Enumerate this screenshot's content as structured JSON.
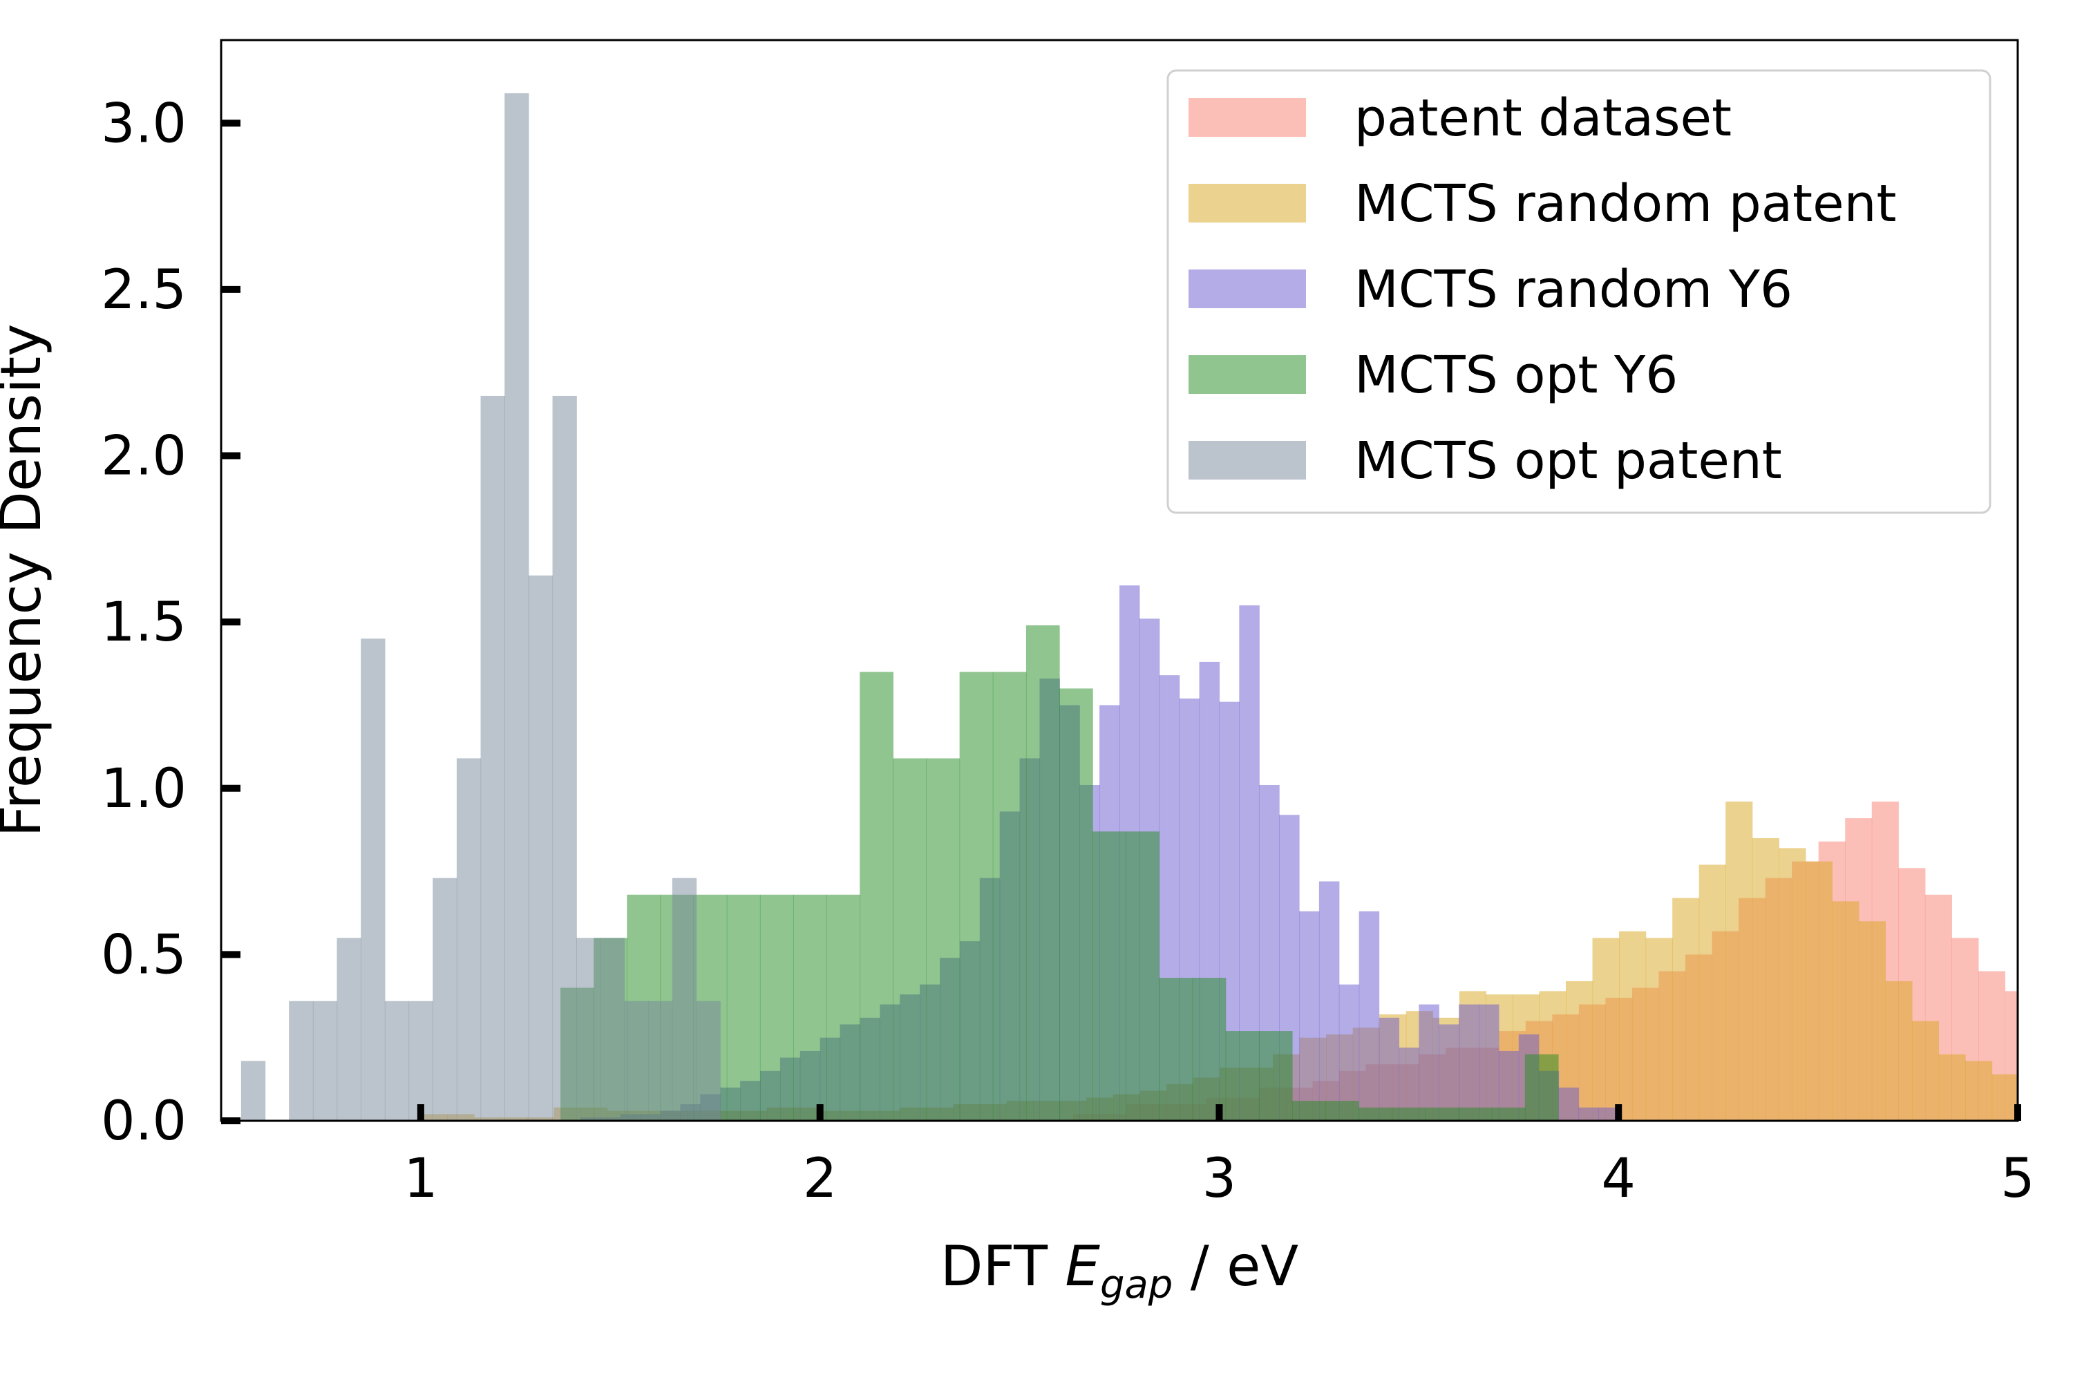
{
  "chart_data": {
    "type": "histogram",
    "xlabel": "DFT E_gap / eV",
    "xlabel_parts": {
      "prefix": "DFT ",
      "symbol": "E",
      "subscript": "gap",
      "suffix": " / eV"
    },
    "ylabel": "Frequency Density",
    "xlim": [
      0.5,
      5.0
    ],
    "ylim": [
      0,
      3.25
    ],
    "xticks": [
      1,
      2,
      3,
      4,
      5
    ],
    "yticks": [
      0.0,
      0.5,
      1.0,
      1.5,
      2.0,
      2.5,
      3.0
    ],
    "ytick_labels": [
      "0.0",
      "0.5",
      "1.0",
      "1.5",
      "2.0",
      "2.5",
      "3.0"
    ],
    "grid": false,
    "legend_position": "top-right",
    "series": [
      {
        "name": "patent dataset",
        "color": "#fa8072",
        "opacity": 0.5,
        "bin_start": 2.5,
        "bin_width": 0.0667,
        "values": [
          0.0,
          0.0,
          0.02,
          0.02,
          0.05,
          0.05,
          0.05,
          0.07,
          0.07,
          0.1,
          0.1,
          0.12,
          0.15,
          0.17,
          0.17,
          0.2,
          0.22,
          0.22,
          0.27,
          0.3,
          0.32,
          0.35,
          0.37,
          0.4,
          0.45,
          0.5,
          0.57,
          0.67,
          0.73,
          0.78,
          0.84,
          0.91,
          0.96,
          0.76,
          0.68,
          0.55,
          0.45,
          0.39,
          0.35,
          0.33,
          0.3,
          0.37,
          0.34,
          0.3,
          0.25
        ]
      },
      {
        "name": "MCTS random patent",
        "color": "#daa520",
        "opacity": 0.5,
        "bin_start": 1.0,
        "bin_width": 0.0667,
        "values": [
          0.02,
          0.02,
          0.01,
          0.01,
          0.01,
          0.04,
          0.04,
          0.03,
          0.03,
          0.03,
          0.03,
          0.03,
          0.03,
          0.04,
          0.04,
          0.03,
          0.03,
          0.03,
          0.04,
          0.04,
          0.05,
          0.05,
          0.06,
          0.06,
          0.06,
          0.07,
          0.08,
          0.09,
          0.11,
          0.13,
          0.16,
          0.16,
          0.2,
          0.25,
          0.26,
          0.28,
          0.32,
          0.33,
          0.31,
          0.39,
          0.38,
          0.38,
          0.39,
          0.42,
          0.55,
          0.57,
          0.55,
          0.67,
          0.77,
          0.96,
          0.85,
          0.82,
          0.78,
          0.66,
          0.6,
          0.42,
          0.3,
          0.2,
          0.18,
          0.14,
          0.11,
          0.09,
          0.09,
          0.07,
          0.05,
          0.05,
          0.05,
          0.05,
          0.03
        ]
      },
      {
        "name": "MCTS random Y6",
        "color": "#6a5acd",
        "opacity": 0.5,
        "bin_start": 1.4,
        "bin_width": 0.05,
        "values": [
          0.01,
          0.01,
          0.02,
          0.02,
          0.03,
          0.05,
          0.08,
          0.1,
          0.12,
          0.15,
          0.19,
          0.21,
          0.25,
          0.29,
          0.31,
          0.35,
          0.38,
          0.41,
          0.49,
          0.54,
          0.73,
          0.93,
          1.09,
          1.33,
          1.25,
          1.01,
          1.25,
          1.61,
          1.51,
          1.34,
          1.27,
          1.38,
          1.26,
          1.55,
          1.01,
          0.92,
          0.63,
          0.72,
          0.41,
          0.63,
          0.31,
          0.22,
          0.35,
          0.29,
          0.35,
          0.35,
          0.21,
          0.26,
          0.15,
          0.1,
          0.04,
          0.04
        ]
      },
      {
        "name": "MCTS opt Y6",
        "color": "#228b22",
        "opacity": 0.5,
        "bin_start": 1.35,
        "bin_width": 0.0833,
        "values": [
          0.4,
          0.55,
          0.68,
          0.68,
          0.68,
          0.68,
          0.68,
          0.68,
          0.68,
          1.35,
          1.09,
          1.09,
          1.35,
          1.35,
          1.49,
          1.3,
          0.87,
          0.87,
          0.43,
          0.43,
          0.27,
          0.27,
          0.06,
          0.06,
          0.04,
          0.04,
          0.04,
          0.04,
          0.04,
          0.2
        ]
      },
      {
        "name": "MCTS opt patent",
        "color": "#778899",
        "opacity": 0.5,
        "bin_start": 0.55,
        "bin_width": 0.06,
        "values": [
          0.18,
          0.0,
          0.36,
          0.36,
          0.55,
          1.45,
          0.36,
          0.36,
          0.73,
          1.09,
          2.18,
          3.09,
          1.64,
          2.18,
          0.55,
          0.55,
          0.36,
          0.36,
          0.73,
          0.36,
          0.0,
          0.0
        ]
      }
    ]
  }
}
